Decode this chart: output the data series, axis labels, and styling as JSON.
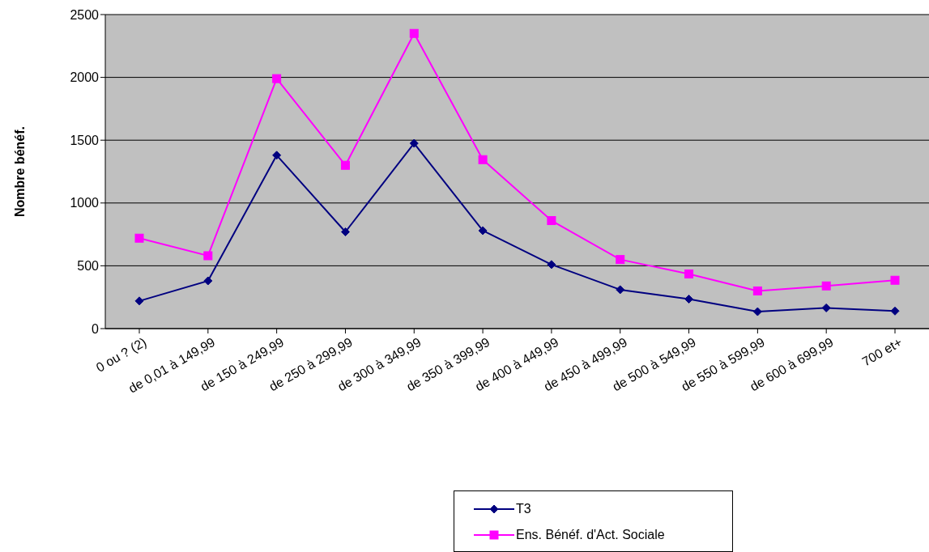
{
  "chart_data": {
    "type": "line",
    "ylabel": "Nombre bénéf.",
    "categories": [
      "0 ou ? (2)",
      "de 0,01 à 149,99",
      "de 150 à 249,99",
      "de 250 à 299,99",
      "de 300 à 349,99",
      "de 350 à 399,99",
      "de 400 à 449,99",
      "de 450 à 499,99",
      "de 500 à 549,99",
      "de 550 à 599,99",
      "de 600 à 699,99",
      "700 et+"
    ],
    "series": [
      {
        "name": "T3",
        "color": "#000080",
        "marker": "diamond",
        "values": [
          220,
          380,
          1380,
          770,
          1475,
          780,
          510,
          310,
          235,
          135,
          165,
          140
        ]
      },
      {
        "name": "Ens. Bénéf. d'Act. Sociale",
        "color": "#ff00ff",
        "marker": "square",
        "values": [
          720,
          580,
          1990,
          1300,
          2350,
          1345,
          860,
          550,
          435,
          300,
          340,
          385
        ]
      }
    ],
    "ylim": [
      0,
      2500
    ],
    "yticks": [
      0,
      500,
      1000,
      1500,
      2000,
      2500
    ],
    "grid": "y",
    "legend": "bottom",
    "line_style": "solid"
  }
}
